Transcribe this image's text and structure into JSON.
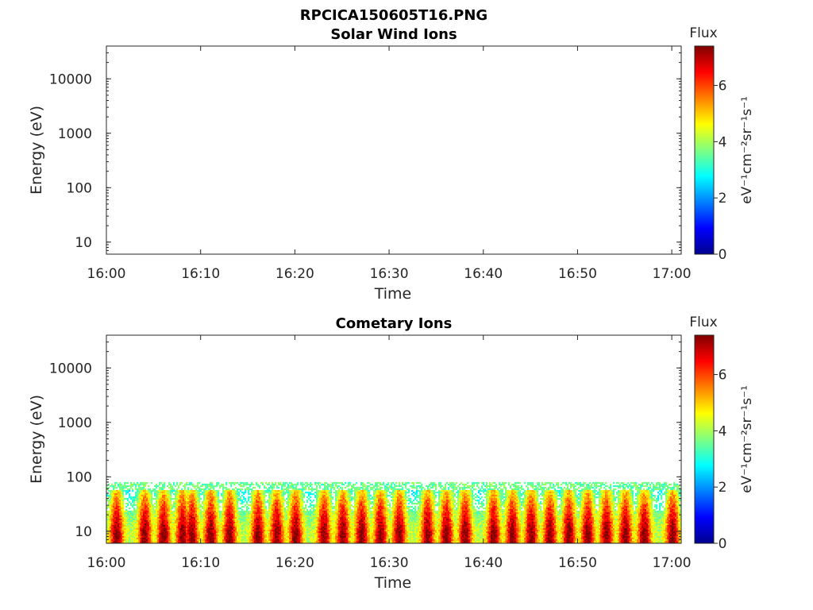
{
  "figure": {
    "title": "RPCICA150605T16.PNG"
  },
  "chart_data": [
    {
      "type": "heatmap",
      "title": "Solar Wind Ions",
      "xlabel": "Time",
      "ylabel": "Energy (eV)",
      "x_ticks": [
        "16:00",
        "16:10",
        "16:20",
        "16:30",
        "16:40",
        "16:50",
        "17:00"
      ],
      "y_ticks": [
        "10",
        "100",
        "1000",
        "10000"
      ],
      "y_scale": "log",
      "xlim": [
        "16:00",
        "17:01"
      ],
      "ylim": [
        6,
        40000
      ],
      "colorbar": {
        "title": "Flux",
        "label": "eV⁻¹cm⁻²sr⁻¹s⁻¹",
        "ticks": [
          "0",
          "2",
          "4",
          "6"
        ],
        "range": [
          0,
          7.4
        ],
        "colormap": "jet"
      },
      "data": "empty"
    },
    {
      "type": "heatmap",
      "title": "Cometary Ions",
      "xlabel": "Time",
      "ylabel": "Energy (eV)",
      "x_ticks": [
        "16:00",
        "16:10",
        "16:20",
        "16:30",
        "16:40",
        "16:50",
        "17:00"
      ],
      "y_ticks": [
        "10",
        "100",
        "1000",
        "10000"
      ],
      "y_scale": "log",
      "xlim": [
        "16:00",
        "17:01"
      ],
      "ylim": [
        6,
        40000
      ],
      "colorbar": {
        "title": "Flux",
        "label": "eV⁻¹cm⁻²sr⁻¹s⁻¹",
        "ticks": [
          "0",
          "2",
          "4",
          "6"
        ],
        "range": [
          0,
          7.4
        ],
        "colormap": "jet"
      },
      "energy_upper_edge_eV": 80,
      "peak_times": [
        "16:01",
        "16:04",
        "16:06",
        "16:08",
        "16:09",
        "16:11",
        "16:13",
        "16:16",
        "16:18",
        "16:20",
        "16:23",
        "16:25",
        "16:27",
        "16:29",
        "16:31",
        "16:34",
        "16:36",
        "16:38",
        "16:41",
        "16:43",
        "16:45",
        "16:47",
        "16:49",
        "16:51",
        "16:53",
        "16:55",
        "16:57",
        "17:00"
      ]
    }
  ]
}
